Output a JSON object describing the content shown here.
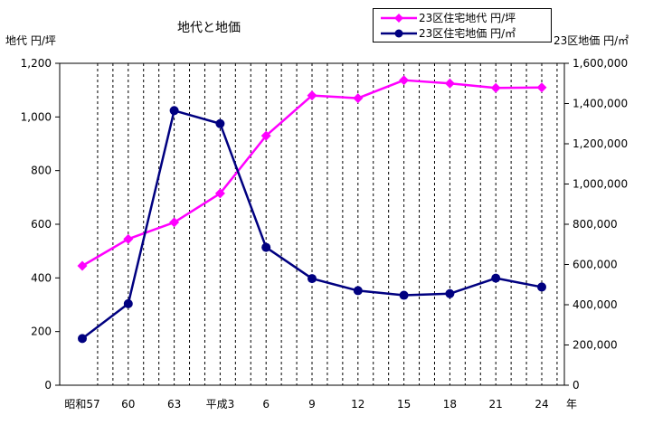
{
  "chart_data": {
    "type": "line",
    "title": "地代と地価",
    "y_left_label": "地代 円/坪",
    "y_right_label": "23区地価 円/㎡",
    "x_unit": "年",
    "categories": [
      "昭和57",
      "60",
      "63",
      "平成3",
      "6",
      "9",
      "12",
      "15",
      "18",
      "21",
      "24"
    ],
    "y_left_ticks": [
      "0",
      "200",
      "400",
      "600",
      "800",
      "1,000",
      "1,200"
    ],
    "y_right_ticks": [
      "0",
      "200,000",
      "400,000",
      "600,000",
      "800,000",
      "1,000,000",
      "1,200,000",
      "1,400,000",
      "1,600,000"
    ],
    "y_left_range": [
      0,
      1200
    ],
    "y_right_range": [
      0,
      1600000
    ],
    "grid": "vertical dashed",
    "legend_position": "top-right",
    "series": [
      {
        "name": "23区住宅地代 円/坪",
        "axis": "left",
        "color": "#ff00ff",
        "marker": "diamond",
        "values": [
          445,
          545,
          607,
          715,
          930,
          1080,
          1070,
          1137,
          1125,
          1108,
          1110
        ]
      },
      {
        "name": "23区住宅地価 円/㎡",
        "axis": "right",
        "color": "#000080",
        "marker": "circle",
        "values": [
          232000,
          405000,
          1365000,
          1300000,
          685000,
          530000,
          470000,
          447000,
          455000,
          532000,
          488000
        ]
      }
    ]
  }
}
